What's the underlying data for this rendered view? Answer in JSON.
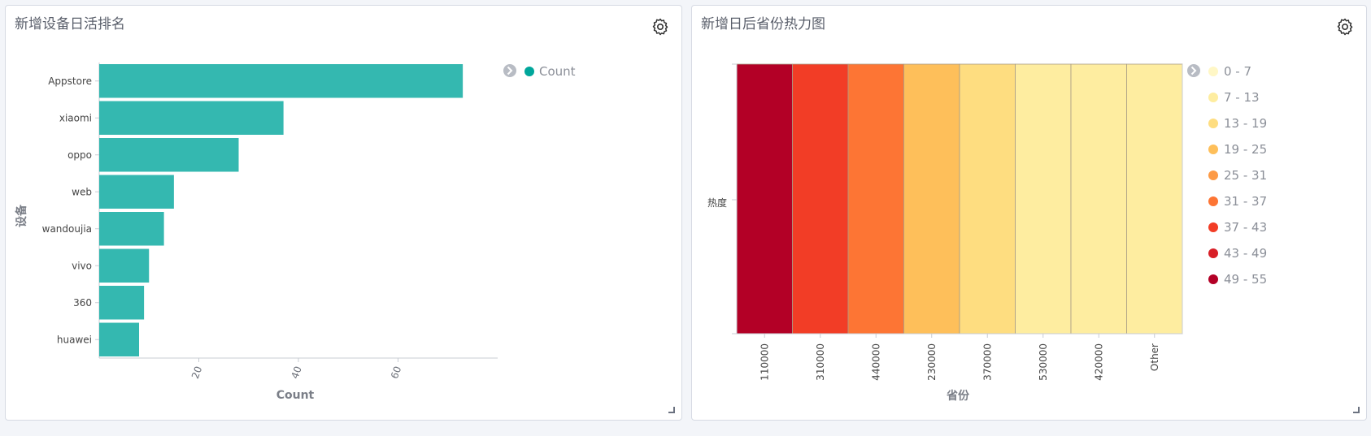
{
  "panels": [
    {
      "title": "新增设备日活排名",
      "chart_data": {
        "type": "bar",
        "orientation": "horizontal",
        "categories": [
          "Appstore",
          "xiaomi",
          "oppo",
          "web",
          "wandoujia",
          "vivo",
          "360",
          "huawei"
        ],
        "series": [
          {
            "name": "Count",
            "values": [
              73,
              37,
              28,
              15,
              13,
              10,
              9,
              8
            ],
            "color": "#34b8b0"
          }
        ],
        "xlabel": "Count",
        "ylabel": "设备",
        "xlim": [
          0,
          80
        ],
        "xticks": [
          20,
          40,
          60
        ],
        "legend": {
          "position": "top-right",
          "items": [
            "Count"
          ],
          "color": "#00a69b"
        },
        "grid": false
      }
    },
    {
      "title": "新增日后省份热力图",
      "chart_data": {
        "type": "heatmap",
        "x": [
          "110000",
          "310000",
          "440000",
          "230000",
          "370000",
          "530000",
          "420000",
          "Other"
        ],
        "y": [
          "热度"
        ],
        "values": [
          [
            52,
            40,
            34,
            24,
            16,
            10,
            10,
            10
          ]
        ],
        "xlabel": "省份",
        "ylabel": "",
        "legend": {
          "position": "right",
          "ranges": [
            {
              "label": "0 - 7",
              "color": "#fff7c6"
            },
            {
              "label": "7 - 13",
              "color": "#feeda0"
            },
            {
              "label": "13 - 19",
              "color": "#fedd80"
            },
            {
              "label": "19 - 25",
              "color": "#febf5a"
            },
            {
              "label": "25 - 31",
              "color": "#fd9a45"
            },
            {
              "label": "31 - 37",
              "color": "#fd7534"
            },
            {
              "label": "37 - 43",
              "color": "#f23d26"
            },
            {
              "label": "43 - 49",
              "color": "#d81f27"
            },
            {
              "label": "49 - 55",
              "color": "#b30026"
            }
          ]
        },
        "grid": false
      }
    }
  ],
  "icons": {
    "settings": "gear-icon",
    "legend_toggle": "chevron-right-icon",
    "resize": "resize-handle-icon"
  }
}
